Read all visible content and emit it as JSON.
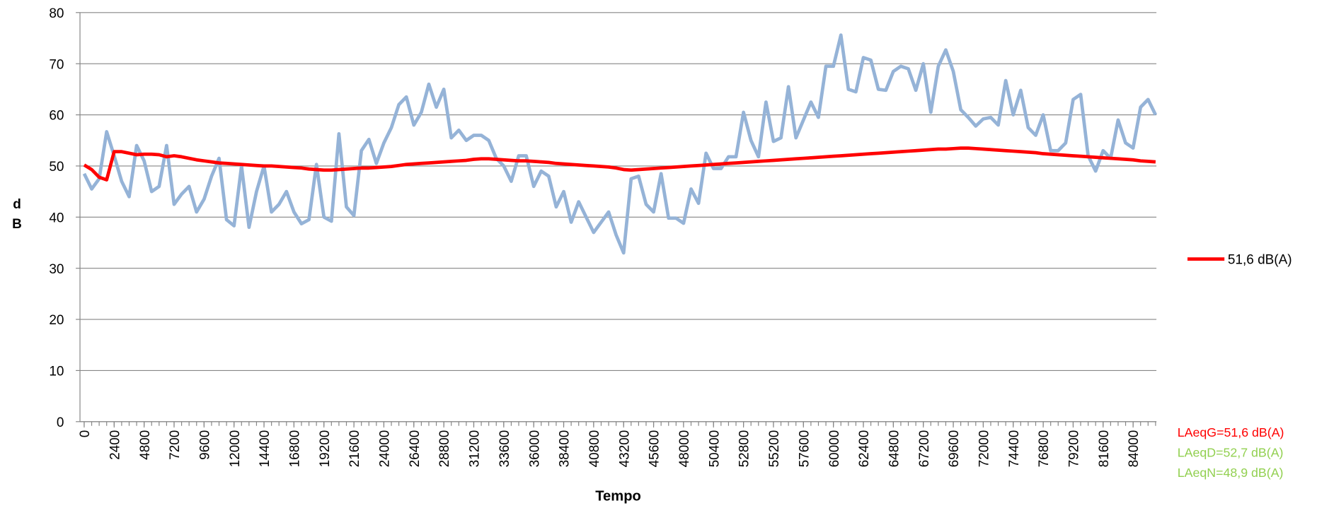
{
  "chart_data": {
    "type": "line",
    "y_label": "dB",
    "x_label": "Tempo",
    "annotations": [
      {
        "text": "LAeqG=51,6 dB(A)",
        "color": "#ff0000"
      },
      {
        "text": "LAeqD=52,7 dB(A)",
        "color": "#92d050"
      },
      {
        "text": "LAeqN=48,9 dB(A)",
        "color": "#92d050"
      }
    ],
    "xlim": [
      0,
      85800
    ],
    "xticks": [
      0,
      2400,
      4800,
      7200,
      9600,
      12000,
      14400,
      16800,
      19200,
      21600,
      24000,
      26400,
      28800,
      31200,
      33600,
      36000,
      38400,
      40800,
      43200,
      45600,
      48000,
      50400,
      52800,
      55200,
      57600,
      60000,
      62400,
      64800,
      67200,
      69600,
      72000,
      74400,
      76800,
      79200,
      81600,
      84000
    ],
    "ylim": [
      0,
      80
    ],
    "yticks": [
      0,
      10,
      20,
      30,
      40,
      50,
      60,
      70,
      80
    ],
    "grid": true,
    "legend": "right",
    "x": [
      0,
      600,
      1200,
      1800,
      2400,
      3000,
      3600,
      4200,
      4800,
      5400,
      6000,
      6600,
      7200,
      7800,
      8400,
      9000,
      9600,
      10200,
      10800,
      11400,
      12000,
      12600,
      13200,
      13800,
      14400,
      15000,
      15600,
      16200,
      16800,
      17400,
      18000,
      18600,
      19200,
      19800,
      20400,
      21000,
      21600,
      22200,
      22800,
      23400,
      24000,
      24600,
      25200,
      25800,
      26400,
      27000,
      27600,
      28200,
      28800,
      29400,
      30000,
      30600,
      31200,
      31800,
      32400,
      33000,
      33600,
      34200,
      34800,
      35400,
      36000,
      36600,
      37200,
      37800,
      38400,
      39000,
      39600,
      40200,
      40800,
      41400,
      42000,
      42600,
      43200,
      43800,
      44400,
      45000,
      45600,
      46200,
      46800,
      47400,
      48000,
      48600,
      49200,
      49800,
      50400,
      51000,
      51600,
      52200,
      52800,
      53400,
      54000,
      54600,
      55200,
      55800,
      56400,
      57000,
      57600,
      58200,
      58800,
      59400,
      60000,
      60600,
      61200,
      61800,
      62400,
      63000,
      63600,
      64200,
      64800,
      65400,
      66000,
      66600,
      67200,
      67800,
      68400,
      69000,
      69600,
      70200,
      70800,
      71400,
      72000,
      72600,
      73200,
      73800,
      74400,
      75000,
      75600,
      76200,
      76800,
      77400,
      78000,
      78600,
      79200,
      79800,
      80400,
      81000,
      81600,
      82200,
      82800,
      83400,
      84000,
      84600,
      85200,
      85800
    ],
    "series": [
      {
        "color": "#95b3d7",
        "values": [
          48.5,
          45.5,
          47.5,
          56.7,
          52,
          47,
          44,
          54,
          51,
          45,
          46,
          54,
          42.5,
          44.5,
          46,
          41,
          43.5,
          48,
          51.5,
          39.5,
          38.3,
          50,
          38,
          45,
          50,
          41,
          42.5,
          45,
          41,
          38.7,
          39.5,
          50.3,
          40,
          39.2,
          56.3,
          42,
          40.3,
          53,
          55.2,
          50.5,
          54.5,
          57.5,
          62,
          63.5,
          58,
          60.5,
          66,
          61.5,
          65,
          55.5,
          57,
          55,
          56,
          56,
          55,
          51.5,
          50,
          47,
          52,
          52,
          46,
          49,
          48,
          42,
          45,
          39,
          43,
          40,
          37,
          39,
          41,
          36.5,
          33,
          47.5,
          48,
          42.5,
          41,
          48.5,
          39.8,
          39.8,
          38.8,
          45.5,
          42.7,
          52.5,
          49.5,
          49.5,
          51.8,
          51.8,
          60.5,
          55,
          51.8,
          62.5,
          54.8,
          55.5,
          65.5,
          55.5,
          59,
          62.5,
          59.5,
          69.5,
          69.5,
          75.6,
          65,
          64.5,
          71.2,
          70.7,
          65,
          64.8,
          68.5,
          69.5,
          69,
          64.8,
          70,
          60.5,
          69.5,
          72.7,
          68.5,
          61,
          59.5,
          57.8,
          59.2,
          59.5,
          58,
          66.7,
          60,
          64.8,
          57.5,
          56,
          60,
          53,
          53,
          54.5,
          63,
          64,
          52,
          49,
          53,
          51.5,
          59,
          54.5,
          53.5,
          61.5,
          63,
          60
        ]
      },
      {
        "name": "51,6 dB(A)",
        "color": "#ff0000",
        "values": [
          50.2,
          49.3,
          47.8,
          47.3,
          52.8,
          52.8,
          52.5,
          52.2,
          52.3,
          52.3,
          52.2,
          51.8,
          52,
          51.8,
          51.5,
          51.2,
          51,
          50.8,
          50.6,
          50.5,
          50.4,
          50.3,
          50.2,
          50.1,
          50,
          50,
          49.9,
          49.8,
          49.7,
          49.6,
          49.4,
          49.3,
          49.2,
          49.2,
          49.3,
          49.4,
          49.5,
          49.6,
          49.6,
          49.7,
          49.8,
          49.9,
          50.1,
          50.3,
          50.4,
          50.5,
          50.6,
          50.7,
          50.8,
          50.9,
          51,
          51.1,
          51.3,
          51.4,
          51.4,
          51.3,
          51.2,
          51.1,
          51,
          51,
          50.9,
          50.8,
          50.7,
          50.5,
          50.4,
          50.3,
          50.2,
          50.1,
          50,
          49.9,
          49.8,
          49.6,
          49.3,
          49.2,
          49.3,
          49.4,
          49.5,
          49.6,
          49.7,
          49.8,
          49.9,
          50,
          50.1,
          50.2,
          50.3,
          50.4,
          50.5,
          50.6,
          50.7,
          50.8,
          50.9,
          51,
          51.1,
          51.2,
          51.3,
          51.4,
          51.5,
          51.6,
          51.7,
          51.8,
          51.9,
          52,
          52.1,
          52.2,
          52.3,
          52.4,
          52.5,
          52.6,
          52.7,
          52.8,
          52.9,
          53,
          53.1,
          53.2,
          53.3,
          53.3,
          53.4,
          53.5,
          53.5,
          53.4,
          53.3,
          53.2,
          53.1,
          53,
          52.9,
          52.8,
          52.7,
          52.6,
          52.4,
          52.3,
          52.2,
          52.1,
          52,
          51.9,
          51.8,
          51.7,
          51.6,
          51.5,
          51.4,
          51.3,
          51.2,
          51,
          50.9,
          50.8
        ]
      }
    ]
  }
}
